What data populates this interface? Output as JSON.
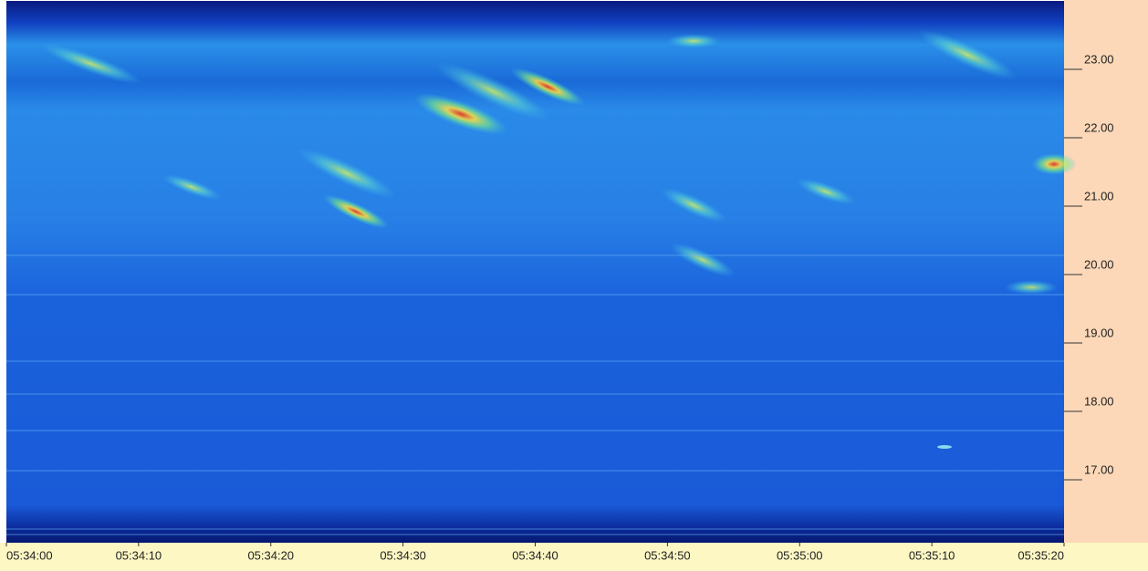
{
  "chart_data": {
    "type": "spectrogram",
    "xlim": [
      20040,
      20120
    ],
    "xticks": [
      {
        "value": 20040,
        "label": "05:34:00"
      },
      {
        "value": 20050,
        "label": "05:34:10"
      },
      {
        "value": 20060,
        "label": "05:34:20"
      },
      {
        "value": 20070,
        "label": "05:34:30"
      },
      {
        "value": 20080,
        "label": "05:34:40"
      },
      {
        "value": 20090,
        "label": "05:34:50"
      },
      {
        "value": 20100,
        "label": "05:35:00"
      },
      {
        "value": 20110,
        "label": "05:35:10"
      },
      {
        "value": 20120,
        "label": "05:35:20"
      }
    ],
    "ylim": [
      16.08,
      24
    ],
    "yticks": [
      {
        "value": 17,
        "label": "17.00"
      },
      {
        "value": 18,
        "label": "18.00"
      },
      {
        "value": 19,
        "label": "19.00"
      },
      {
        "value": 20,
        "label": "20.00"
      },
      {
        "value": 21,
        "label": "21.00"
      },
      {
        "value": 22,
        "label": "22.00"
      },
      {
        "value": 23,
        "label": "23.00"
      }
    ]
  }
}
